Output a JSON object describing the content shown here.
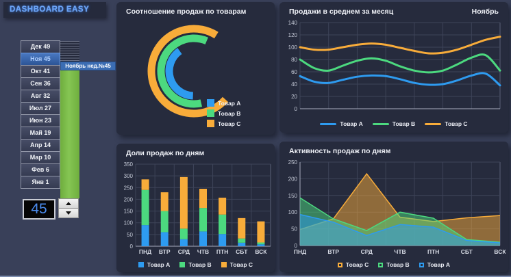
{
  "app": {
    "title": "DASHBOARD EASY"
  },
  "colors": {
    "tovar_a": "#2e9bf0",
    "tovar_b": "#4cd97f",
    "tovar_c": "#f8ac3a",
    "panel": "#262b3d",
    "background": "#394059",
    "grid": "#3e4459",
    "axis_bright": "#a9aec0",
    "tick_text": "#c2c7d4"
  },
  "sidebar": {
    "months": [
      {
        "label": "Дек 49",
        "selected": false
      },
      {
        "label": "Ноя 45",
        "selected": true
      },
      {
        "label": "Окт 41",
        "selected": false
      },
      {
        "label": "Сен 36",
        "selected": false
      },
      {
        "label": "Авг 32",
        "selected": false
      },
      {
        "label": "Июл 27",
        "selected": false
      },
      {
        "label": "Июн 23",
        "selected": false
      },
      {
        "label": "Май 19",
        "selected": false
      },
      {
        "label": "Апр 14",
        "selected": false
      },
      {
        "label": "Мар 10",
        "selected": false
      },
      {
        "label": "Фев 6",
        "selected": false
      },
      {
        "label": "Янв 1",
        "selected": false
      }
    ],
    "tooltip": "Ноябрь нед.№45",
    "week_value": "45"
  },
  "chart_data": [
    {
      "type": "radial",
      "title": "Соотношение продаж по товарам",
      "legend": [
        {
          "name": "Товар A",
          "color_key": "tovar_a"
        },
        {
          "name": "Товар B",
          "color_key": "tovar_b"
        },
        {
          "name": "Товар C",
          "color_key": "tovar_c"
        }
      ],
      "arcs": [
        {
          "name": "Товар C",
          "color_key": "tovar_c",
          "radius": 62,
          "start_deg": 58,
          "end_deg": 318
        },
        {
          "name": "Товар B",
          "color_key": "tovar_b",
          "radius": 48,
          "start_deg": 67,
          "end_deg": 283
        },
        {
          "name": "Товар A",
          "color_key": "tovar_a",
          "radius": 36,
          "start_deg": 125,
          "end_deg": 268
        }
      ]
    },
    {
      "type": "line",
      "title": "Продажи в среднем за месяц",
      "subtitle": "Ноябрь",
      "ylim": [
        0,
        140
      ],
      "ystep": 20,
      "series": [
        {
          "name": "Товар A",
          "color_key": "tovar_a",
          "values": [
            53,
            44,
            42,
            47,
            52,
            54,
            53,
            48,
            42,
            39,
            40,
            46,
            54,
            57,
            38
          ]
        },
        {
          "name": "Товар B",
          "color_key": "tovar_b",
          "values": [
            80,
            66,
            62,
            70,
            78,
            82,
            78,
            69,
            62,
            59,
            62,
            72,
            83,
            87,
            62
          ]
        },
        {
          "name": "Товар C",
          "color_key": "tovar_c",
          "values": [
            100,
            96,
            96,
            100,
            104,
            106,
            104,
            99,
            94,
            90,
            91,
            96,
            104,
            112,
            117
          ]
        }
      ]
    },
    {
      "type": "stacked-bar",
      "title": "Доли продаж по дням",
      "categories": [
        "ПНД",
        "ВТР",
        "СРД",
        "ЧТВ",
        "ПТН",
        "СБТ",
        "ВСК"
      ],
      "ylim": [
        0,
        350
      ],
      "ystep": 50,
      "series": [
        {
          "name": "Товар A",
          "color_key": "tovar_a",
          "values": [
            90,
            60,
            30,
            63,
            52,
            15,
            8
          ]
        },
        {
          "name": "Товар B",
          "color_key": "tovar_b",
          "values": [
            150,
            90,
            45,
            100,
            83,
            18,
            8
          ]
        },
        {
          "name": "Товар C",
          "color_key": "tovar_c",
          "values": [
            45,
            80,
            220,
            82,
            72,
            87,
            90
          ]
        }
      ]
    },
    {
      "type": "area",
      "title": "Активность продаж по дням",
      "categories": [
        "ПНД",
        "ВТР",
        "СРД",
        "ЧТВ",
        "ПТН",
        "СБТ",
        "ВСК"
      ],
      "ylim": [
        0,
        250
      ],
      "ystep": 50,
      "series": [
        {
          "name": "Товар C",
          "color_key": "tovar_c",
          "values": [
            48,
            80,
            215,
            85,
            72,
            83,
            90
          ]
        },
        {
          "name": "Товар B",
          "color_key": "tovar_b",
          "values": [
            143,
            80,
            45,
            100,
            82,
            18,
            10
          ]
        },
        {
          "name": "Товар A",
          "color_key": "tovar_a",
          "values": [
            93,
            70,
            30,
            63,
            55,
            15,
            8
          ]
        }
      ]
    }
  ]
}
